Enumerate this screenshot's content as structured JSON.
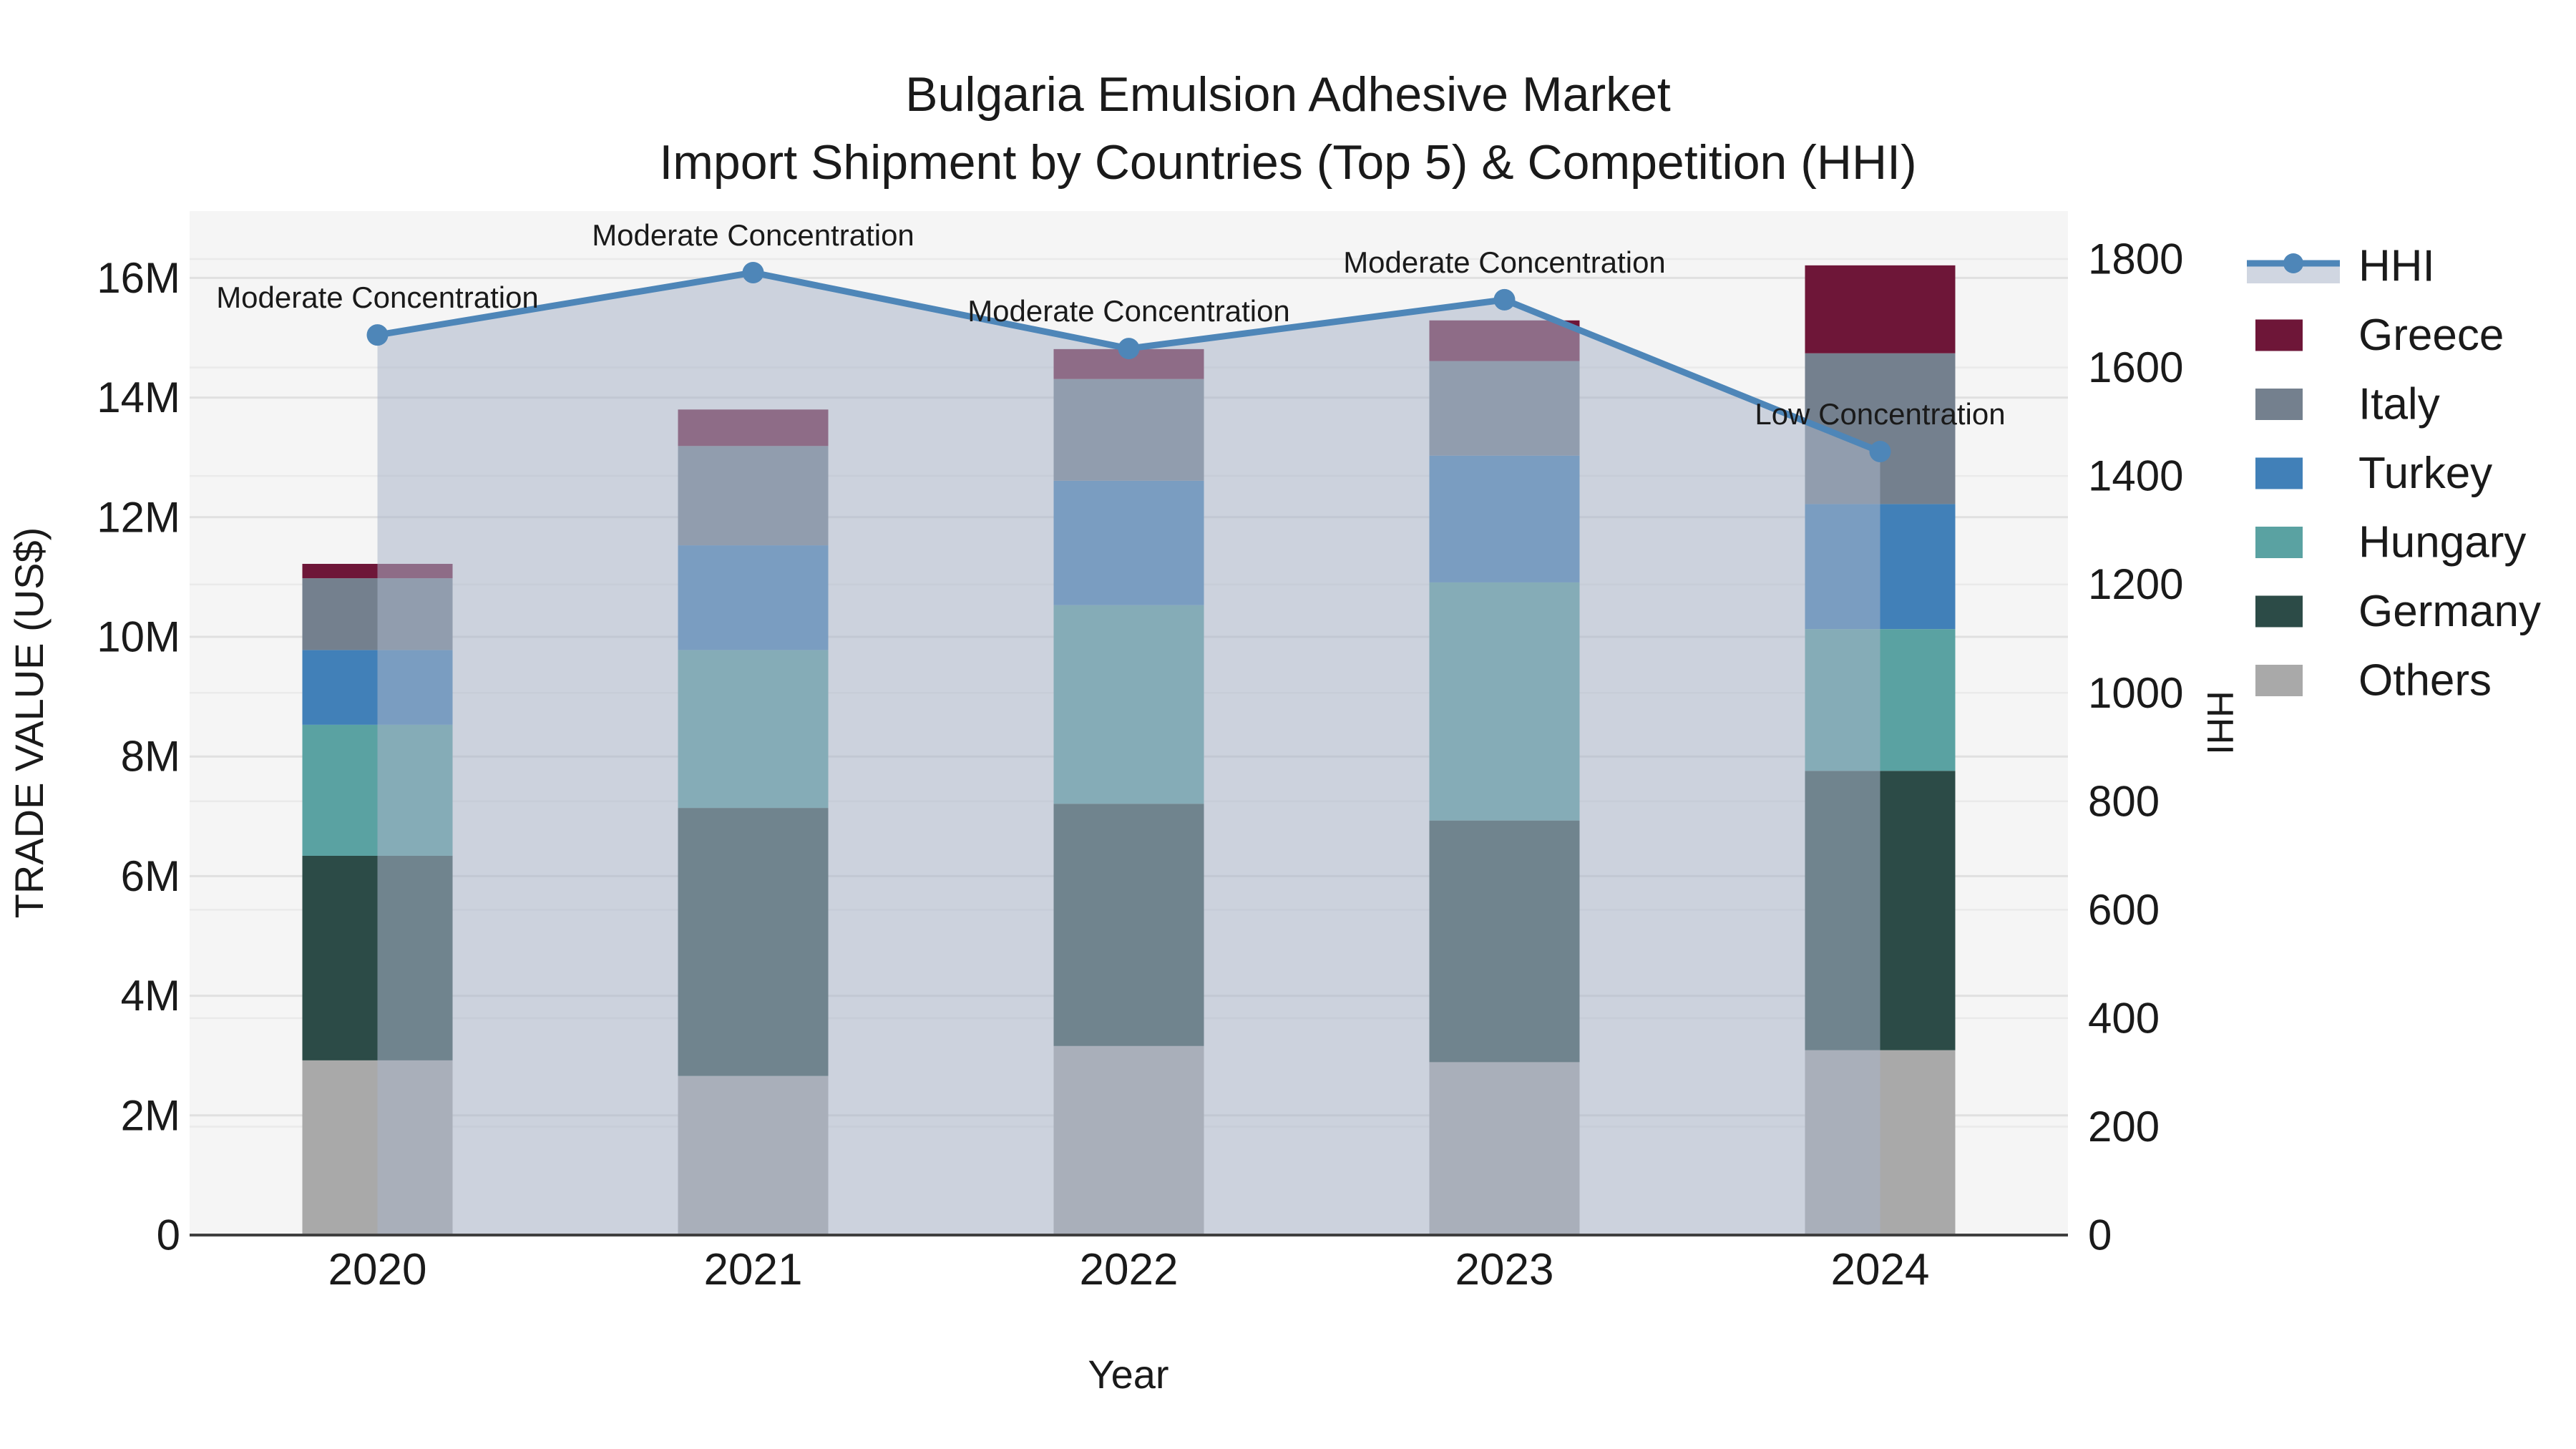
{
  "title": {
    "line1": "Bulgaria Emulsion Adhesive Market",
    "line2": "Import Shipment by Countries (Top 5) & Competition (HHI)"
  },
  "axes": {
    "left_label": "TRADE VALUE (US$)",
    "right_label": "HHI",
    "x_label": "Year",
    "left_ticks": [
      "0",
      "2M",
      "4M",
      "6M",
      "8M",
      "10M",
      "12M",
      "14M",
      "16M"
    ],
    "right_ticks": [
      "0",
      "200",
      "400",
      "600",
      "800",
      "1000",
      "1200",
      "1400",
      "1600",
      "1800"
    ]
  },
  "chart_data": {
    "type": "bar",
    "subtype": "stacked-bar-with-line",
    "title": "Bulgaria Emulsion Adhesive Market — Import Shipment by Countries (Top 5) & Competition (HHI)",
    "xlabel": "Year",
    "ylabel": "TRADE VALUE (US$)",
    "y2label": "HHI",
    "categories": [
      "2020",
      "2021",
      "2022",
      "2023",
      "2024"
    ],
    "value_unit": "million US$",
    "series": [
      {
        "name": "Others",
        "color": "#A9A9A9",
        "values": [
          2.92,
          2.66,
          3.16,
          2.89,
          3.09
        ]
      },
      {
        "name": "Germany",
        "color": "#2C4B47",
        "values": [
          3.42,
          4.48,
          4.05,
          4.04,
          4.67
        ]
      },
      {
        "name": "Hungary",
        "color": "#5AA2A2",
        "values": [
          2.19,
          2.64,
          3.32,
          3.98,
          2.37
        ]
      },
      {
        "name": "Turkey",
        "color": "#4180B8",
        "values": [
          1.25,
          1.75,
          2.08,
          2.12,
          2.09
        ]
      },
      {
        "name": "Italy",
        "color": "#74808E",
        "values": [
          1.2,
          1.66,
          1.7,
          1.58,
          2.52
        ]
      },
      {
        "name": "Greece",
        "color": "#6E1638",
        "values": [
          0.24,
          0.61,
          0.5,
          0.68,
          1.47
        ]
      }
    ],
    "bar_totals": [
      11.22,
      13.8,
      14.81,
      15.29,
      16.21
    ],
    "line_series": {
      "name": "HHI",
      "color": "#4E86B8",
      "area_fill": "rgba(170,181,200,0.55)",
      "values": [
        1660,
        1775,
        1635,
        1725,
        1445
      ]
    },
    "annotations": [
      "Moderate Concentration",
      "Moderate Concentration",
      "Moderate Concentration",
      "Moderate Concentration",
      "Low Concentration"
    ],
    "ylim": [
      0,
      17.1
    ],
    "y2lim": [
      0,
      1888
    ],
    "yticks_values": [
      0,
      2,
      4,
      6,
      8,
      10,
      12,
      14,
      16
    ],
    "y2ticks_values": [
      0,
      200,
      400,
      600,
      800,
      1000,
      1200,
      1400,
      1600,
      1800
    ],
    "grid": true,
    "legend_position": "right"
  },
  "legend": {
    "items": [
      {
        "label": "HHI",
        "type": "line",
        "color": "#4E86B8"
      },
      {
        "label": "Greece",
        "type": "swatch",
        "color": "#6E1638"
      },
      {
        "label": "Italy",
        "type": "swatch",
        "color": "#74808E"
      },
      {
        "label": "Turkey",
        "type": "swatch",
        "color": "#4180B8"
      },
      {
        "label": "Hungary",
        "type": "swatch",
        "color": "#5AA2A2"
      },
      {
        "label": "Germany",
        "type": "swatch",
        "color": "#2C4B47"
      },
      {
        "label": "Others",
        "type": "swatch",
        "color": "#A9A9A9"
      }
    ]
  },
  "colors": {
    "figure_bg": "#ffffff",
    "plot_bg": "#f5f5f5",
    "grid_major": "#e0e0e0",
    "grid_minor": "#eaeaea",
    "axis_line": "#3f3f3f",
    "text": "#1a1a1a"
  }
}
